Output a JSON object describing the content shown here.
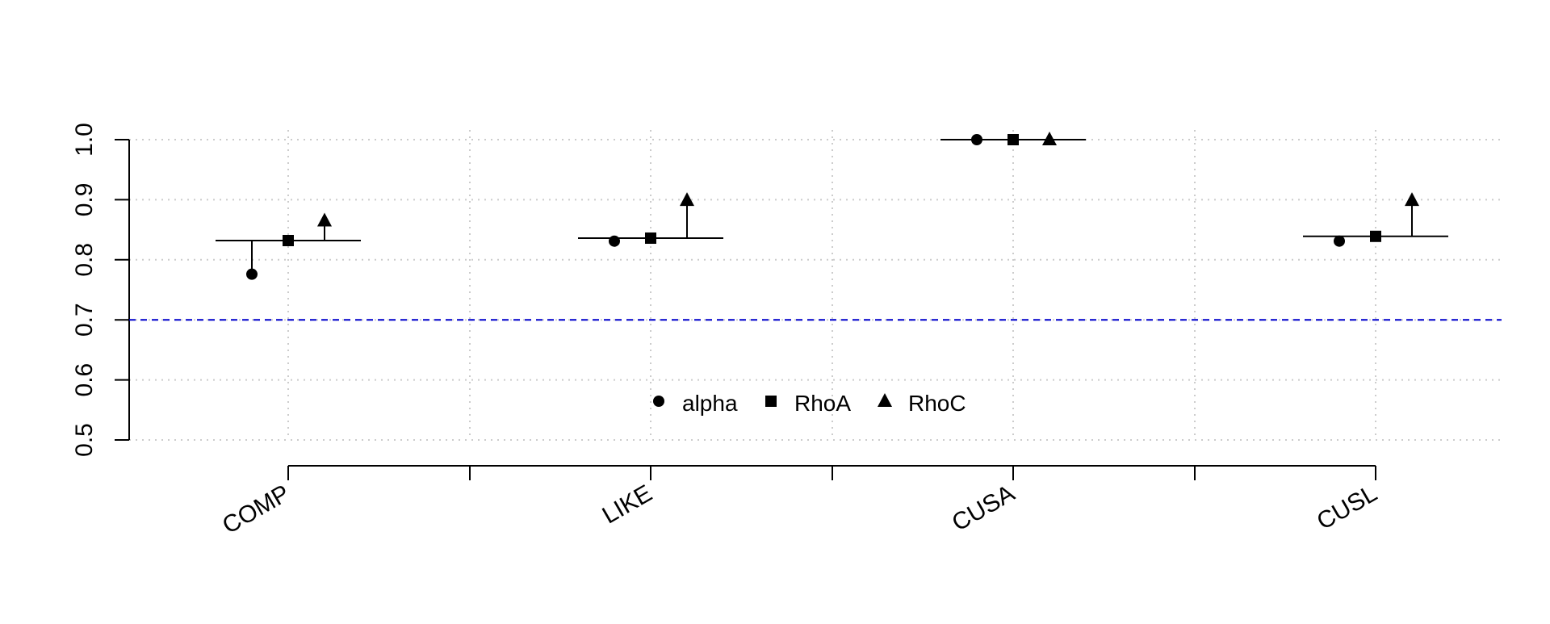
{
  "chart_data": {
    "type": "scatter",
    "title": "",
    "xlabel": "",
    "ylabel": "",
    "categories": [
      "COMP",
      "LIKE",
      "CUSA",
      "CUSL"
    ],
    "series": [
      {
        "name": "alpha",
        "marker": "circle",
        "values": [
          0.776,
          0.831,
          1.0,
          0.831
        ]
      },
      {
        "name": "RhoA",
        "marker": "square",
        "values": [
          0.832,
          0.836,
          1.0,
          0.839
        ]
      },
      {
        "name": "RhoC",
        "marker": "triangle",
        "values": [
          0.865,
          0.899,
          1.0,
          0.899
        ]
      }
    ],
    "reference_values": [
      0.832,
      0.836,
      1.0,
      0.839
    ],
    "ylim": [
      0.5,
      1.0
    ],
    "y_ticks": [
      "0.5",
      "0.6",
      "0.7",
      "0.8",
      "0.9",
      "1.0"
    ],
    "threshold": {
      "value": 0.7,
      "color": "#0000cc",
      "style": "dashed"
    },
    "grid": true,
    "legend_position": "bottom-center",
    "colors": {
      "marks": "#000000",
      "grid": "#cccccc",
      "threshold": "#0000cc"
    }
  }
}
